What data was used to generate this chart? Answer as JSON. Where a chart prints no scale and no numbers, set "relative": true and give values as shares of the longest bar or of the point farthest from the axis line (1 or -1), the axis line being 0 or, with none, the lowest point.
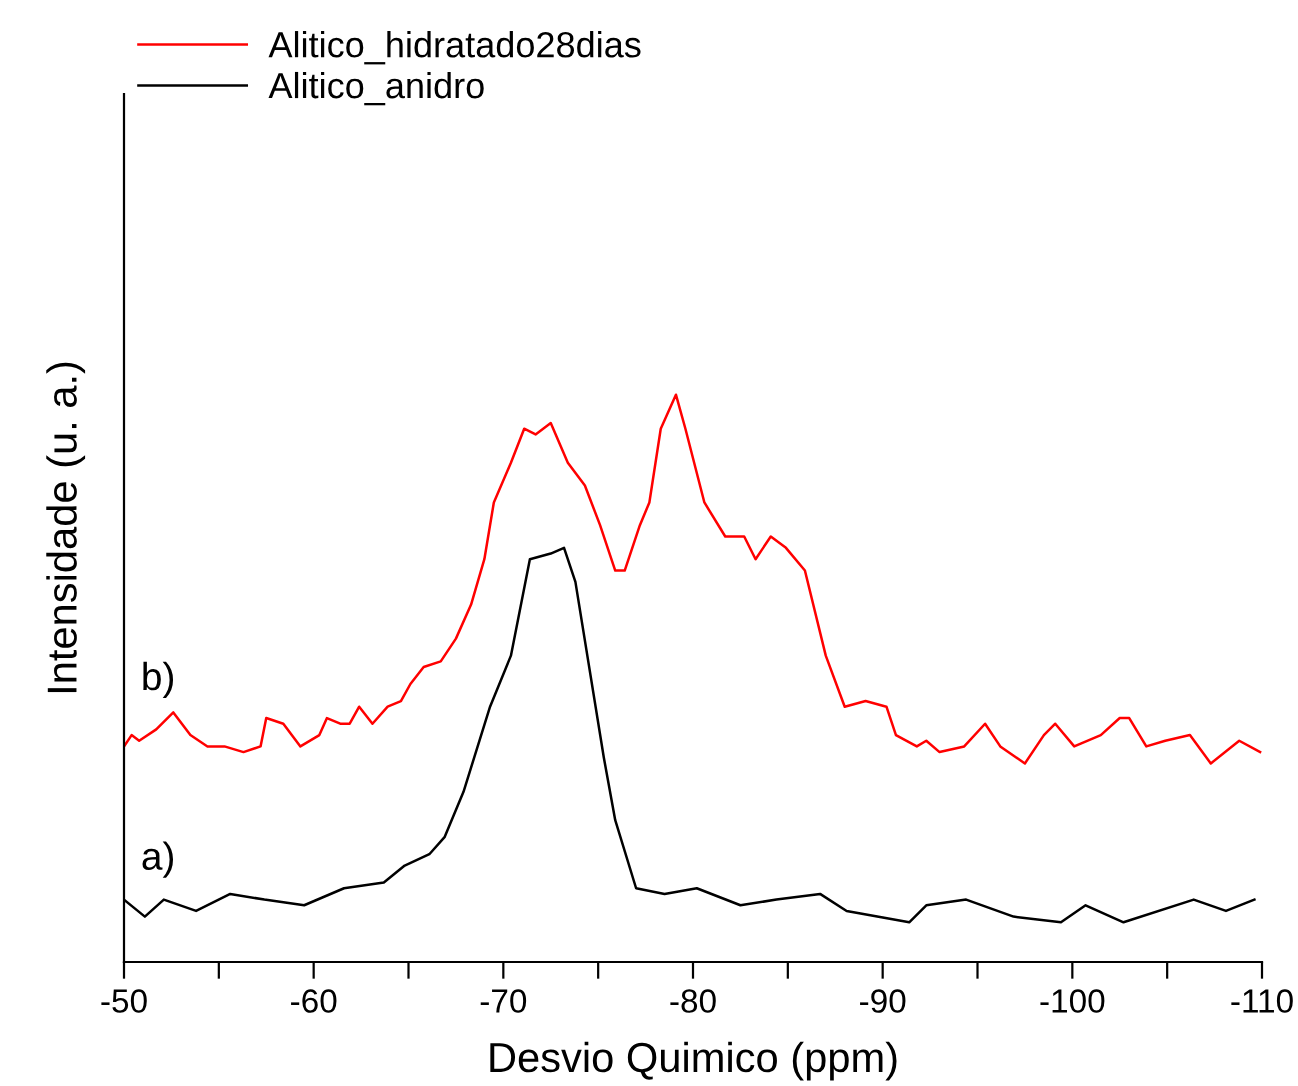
{
  "chart_data": {
    "type": "line",
    "relative": true,
    "xlabel": "Desvio Quimico (ppm)",
    "ylabel": "Intensidade (u. a.)",
    "xlim": [
      -50,
      -110
    ],
    "xticks": [
      -50,
      {
        "value": -55,
        "label": null
      },
      -60,
      {
        "value": -65,
        "label": null
      },
      -70,
      {
        "value": -75,
        "label": null
      },
      -80,
      {
        "value": -85,
        "label": null
      },
      -90,
      {
        "value": -95,
        "label": null
      },
      -100,
      {
        "value": -105,
        "label": null
      },
      -110
    ],
    "legend": "top left",
    "grid": false,
    "tick_labels": "x",
    "annotations": [
      "b)",
      "a)"
    ],
    "series": [
      {
        "name": "Alitico_hidratado28dias",
        "color": "#ff0000",
        "x": [
          -50.0,
          -50.4,
          -50.8,
          -51.7,
          -52.6,
          -53.5,
          -54.4,
          -55.3,
          -56.3,
          -57.2,
          -57.5,
          -58.4,
          -59.3,
          -60.3,
          -60.7,
          -61.4,
          -61.9,
          -62.4,
          -63.1,
          -63.9,
          -64.6,
          -65.1,
          -65.8,
          -66.7,
          -67.5,
          -68.3,
          -69.0,
          -69.5,
          -70.4,
          -71.1,
          -71.7,
          -72.5,
          -73.4,
          -74.3,
          -75.1,
          -75.9,
          -76.4,
          -77.2,
          -77.7,
          -78.3,
          -79.1,
          -79.6,
          -80.6,
          -81.7,
          -82.7,
          -83.3,
          -84.1,
          -84.9,
          -85.9,
          -87.0,
          -88.0,
          -89.1,
          -90.2,
          -90.7,
          -91.8,
          -92.3,
          -93.0,
          -94.3,
          -95.4,
          -96.2,
          -97.5,
          -98.5,
          -99.1,
          -100.1,
          -101.5,
          -102.5,
          -103.0,
          -103.9,
          -104.9,
          -106.2,
          -107.3,
          -108.8,
          -109.9
        ],
        "values": [
          0.38,
          0.4,
          0.39,
          0.41,
          0.44,
          0.4,
          0.38,
          0.38,
          0.37,
          0.38,
          0.43,
          0.42,
          0.38,
          0.4,
          0.43,
          0.42,
          0.42,
          0.45,
          0.42,
          0.45,
          0.46,
          0.49,
          0.52,
          0.53,
          0.57,
          0.63,
          0.71,
          0.81,
          0.88,
          0.94,
          0.93,
          0.95,
          0.88,
          0.84,
          0.77,
          0.69,
          0.69,
          0.77,
          0.81,
          0.94,
          1.0,
          0.94,
          0.81,
          0.75,
          0.75,
          0.71,
          0.75,
          0.73,
          0.69,
          0.54,
          0.45,
          0.46,
          0.45,
          0.4,
          0.38,
          0.39,
          0.37,
          0.38,
          0.42,
          0.38,
          0.35,
          0.4,
          0.42,
          0.38,
          0.4,
          0.43,
          0.43,
          0.38,
          0.39,
          0.4,
          0.35,
          0.39,
          0.37
        ]
      },
      {
        "name": "Alitico_anidro",
        "color": "#000000",
        "x": [
          -50.0,
          -51.1,
          -52.1,
          -53.8,
          -55.6,
          -57.4,
          -59.5,
          -61.6,
          -63.7,
          -64.8,
          -66.1,
          -66.9,
          -67.9,
          -69.3,
          -70.4,
          -71.4,
          -72.5,
          -73.2,
          -73.8,
          -75.3,
          -75.9,
          -77.0,
          -78.5,
          -80.2,
          -82.5,
          -84.4,
          -86.7,
          -88.1,
          -91.4,
          -92.3,
          -94.4,
          -96.9,
          -99.4,
          -100.7,
          -102.7,
          -106.4,
          -108.1,
          -109.6
        ],
        "values": [
          0.11,
          0.08,
          0.11,
          0.09,
          0.12,
          0.11,
          0.1,
          0.13,
          0.14,
          0.17,
          0.19,
          0.22,
          0.3,
          0.45,
          0.54,
          0.71,
          0.72,
          0.73,
          0.67,
          0.36,
          0.25,
          0.13,
          0.12,
          0.13,
          0.1,
          0.11,
          0.12,
          0.09,
          0.07,
          0.1,
          0.11,
          0.08,
          0.07,
          0.1,
          0.07,
          0.11,
          0.09,
          0.11
        ]
      }
    ]
  }
}
